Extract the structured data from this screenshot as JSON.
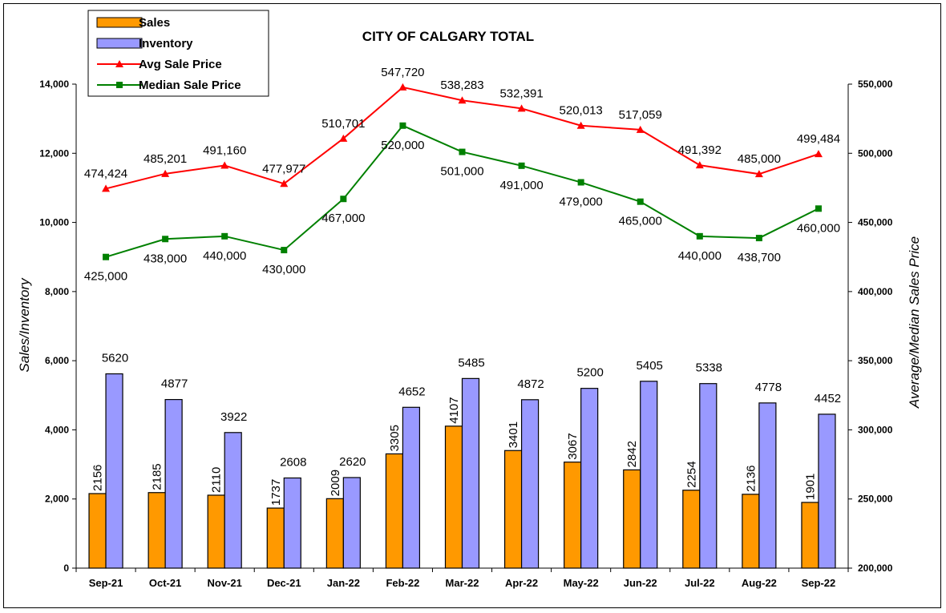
{
  "chart_data": {
    "type": "bar",
    "title": "CITY OF CALGARY TOTAL",
    "categories": [
      "Sep-21",
      "Oct-21",
      "Nov-21",
      "Dec-21",
      "Jan-22",
      "Feb-22",
      "Mar-22",
      "Apr-22",
      "May-22",
      "Jun-22",
      "Jul-22",
      "Aug-22",
      "Sep-22"
    ],
    "series": [
      {
        "name": "Sales",
        "type": "bar",
        "axis": "left",
        "color": "#FF9900",
        "values": [
          2156,
          2185,
          2110,
          1737,
          2009,
          3305,
          4107,
          3401,
          3067,
          2842,
          2254,
          2136,
          1901
        ],
        "labels": [
          "2156",
          "2185",
          "2110",
          "1737",
          "2009",
          "3305",
          "4107",
          "3401",
          "3067",
          "2842",
          "2254",
          "2136",
          "1901"
        ]
      },
      {
        "name": "Inventory",
        "type": "bar",
        "axis": "left",
        "color": "#9999FF",
        "values": [
          5620,
          4877,
          3922,
          2608,
          2620,
          4652,
          5485,
          4872,
          5200,
          5405,
          5338,
          4778,
          4452
        ],
        "labels": [
          "5620",
          "4877",
          "3922",
          "2608",
          "2620",
          "4652",
          "5485",
          "4872",
          "5200",
          "5405",
          "5338",
          "4778",
          "4452"
        ]
      },
      {
        "name": "Avg Sale Price",
        "type": "line",
        "axis": "right",
        "color": "#FF0000",
        "marker": "triangle",
        "values": [
          474424,
          485201,
          491160,
          477977,
          510701,
          547720,
          538283,
          532391,
          520013,
          517059,
          491392,
          485000,
          499484
        ],
        "labels": [
          "474,424",
          "485,201",
          "491,160",
          "477,977",
          "510,701",
          "547,720",
          "538,283",
          "532,391",
          "520,013",
          "517,059",
          "491,392",
          "485,000",
          "499,484"
        ]
      },
      {
        "name": "Median Sale Price",
        "type": "line",
        "axis": "right",
        "color": "#008000",
        "marker": "square",
        "values": [
          425000,
          438000,
          440000,
          430000,
          467000,
          520000,
          501000,
          491000,
          479000,
          465000,
          440000,
          438700,
          460000
        ],
        "labels": [
          "425,000",
          "438,000",
          "440,000",
          "430,000",
          "467,000",
          "520,000",
          "501,000",
          "491,000",
          "479,000",
          "465,000",
          "440,000",
          "438,700",
          "460,000"
        ]
      }
    ],
    "ylabel": "Sales/Inventory",
    "ylim": [
      0,
      14000
    ],
    "yticks": [
      0,
      2000,
      4000,
      6000,
      8000,
      10000,
      12000,
      14000
    ],
    "ytick_labels": [
      "0",
      "2,000",
      "4,000",
      "6,000",
      "8,000",
      "10,000",
      "12,000",
      "14,000"
    ],
    "y2label": "Average/Median Sales Price",
    "y2lim": [
      200000,
      550000
    ],
    "y2ticks": [
      200000,
      250000,
      300000,
      350000,
      400000,
      450000,
      500000,
      550000
    ],
    "y2tick_labels": [
      "200,000",
      "250,000",
      "300,000",
      "350,000",
      "400,000",
      "450,000",
      "500,000",
      "550,000"
    ],
    "grid": false,
    "legend_position": "top-left"
  }
}
